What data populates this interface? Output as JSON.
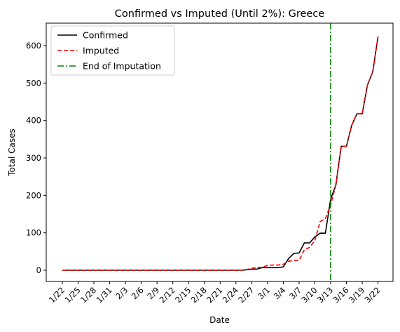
{
  "chart_data": {
    "type": "line",
    "title": "Confirmed vs Imputed (Until 2%): Greece",
    "xlabel": "Date",
    "ylabel": "Total Cases",
    "x": [
      "1/22",
      "1/23",
      "1/24",
      "1/25",
      "1/26",
      "1/27",
      "1/28",
      "1/29",
      "1/30",
      "1/31",
      "2/1",
      "2/2",
      "2/3",
      "2/4",
      "2/5",
      "2/6",
      "2/7",
      "2/8",
      "2/9",
      "2/10",
      "2/11",
      "2/12",
      "2/13",
      "2/14",
      "2/15",
      "2/16",
      "2/17",
      "2/18",
      "2/19",
      "2/20",
      "2/21",
      "2/22",
      "2/23",
      "2/24",
      "2/25",
      "2/26",
      "2/27",
      "2/28",
      "2/29",
      "3/1",
      "3/2",
      "3/3",
      "3/4",
      "3/5",
      "3/6",
      "3/7",
      "3/8",
      "3/9",
      "3/10",
      "3/11",
      "3/12",
      "3/13",
      "3/14",
      "3/15",
      "3/16",
      "3/17",
      "3/18",
      "3/19",
      "3/20",
      "3/21",
      "3/22"
    ],
    "xticks": [
      "1/22",
      "1/25",
      "1/28",
      "1/31",
      "2/3",
      "2/6",
      "2/9",
      "2/12",
      "2/15",
      "2/18",
      "2/21",
      "2/24",
      "2/27",
      "3/1",
      "3/4",
      "3/7",
      "3/10",
      "3/13",
      "3/16",
      "3/19",
      "3/22"
    ],
    "yticks": [
      0,
      100,
      200,
      300,
      400,
      500,
      600
    ],
    "ylim": [
      -30,
      660
    ],
    "series": [
      {
        "name": "Confirmed",
        "color": "#000000",
        "style": "solid",
        "values": [
          0,
          0,
          0,
          0,
          0,
          0,
          0,
          0,
          0,
          0,
          0,
          0,
          0,
          0,
          0,
          0,
          0,
          0,
          0,
          0,
          0,
          0,
          0,
          0,
          0,
          0,
          0,
          0,
          0,
          0,
          0,
          0,
          0,
          0,
          0,
          1,
          3,
          3,
          7,
          7,
          7,
          7,
          9,
          31,
          45,
          46,
          73,
          73,
          89,
          99,
          99,
          190,
          228,
          331,
          331,
          387,
          418,
          418,
          495,
          530,
          624
        ]
      },
      {
        "name": "Imputed",
        "color": "#ff0000",
        "style": "dashed",
        "values": [
          0,
          0,
          0,
          0,
          0,
          0,
          0,
          0,
          0,
          0,
          0,
          0,
          0,
          0,
          0,
          0,
          0,
          0,
          0,
          0,
          0,
          0,
          0,
          0,
          0,
          0,
          0,
          0,
          0,
          0,
          0,
          0,
          0,
          0,
          0,
          2,
          5,
          7,
          8,
          13,
          14,
          14,
          16,
          24,
          26,
          26,
          55,
          61,
          80,
          130,
          138,
          175,
          228,
          331,
          331,
          387,
          418,
          418,
          495,
          530,
          624
        ]
      }
    ],
    "vline": {
      "name": "End of Imputation",
      "x": "3/13",
      "color": "#008000",
      "style": "dashdot"
    },
    "legend_position": "top-left",
    "grid": false
  }
}
